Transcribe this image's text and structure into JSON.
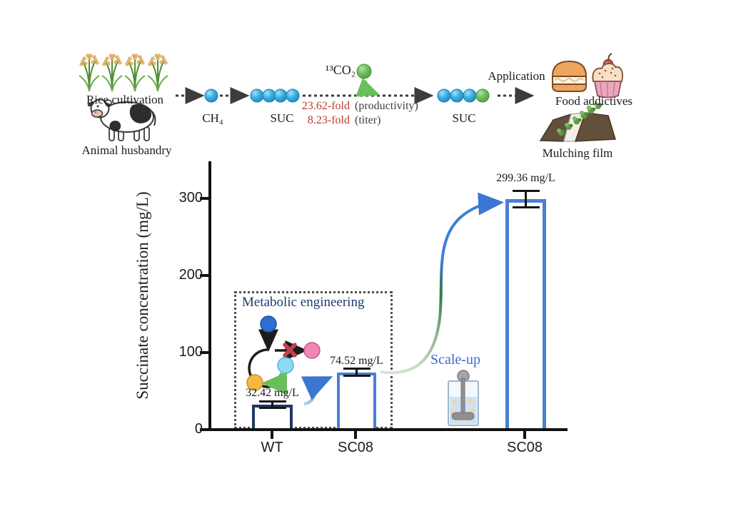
{
  "figure": {
    "background": "#ffffff"
  },
  "flow": {
    "rice_label": "Rice cultivation",
    "animal_label": "Animal husbandry",
    "methane_label": "CH₄",
    "suc_label_1": "SUC",
    "co2_label": "¹³CO₂",
    "productivity_fold": "23.62-fold",
    "productivity_note": "(productivity)",
    "titer_fold": "8.23-fold",
    "titer_note": "(titer)",
    "suc_label_2": "SUC",
    "application_label": "Application",
    "food_label": "Food addictives",
    "mulch_label": "Mulching film",
    "fold_color": "#c0392b",
    "sphere_blue": "#2aa3dd",
    "sphere_green": "#6cbf5c"
  },
  "chart": {
    "metabolic_box_label": "Metabolic engineering",
    "metabolic_label_color": "#1e3a6e",
    "scaleup_label": "Scale-up",
    "scaleup_label_color": "#3a6cc8"
  },
  "chart_data": {
    "type": "bar",
    "categories": [
      "WT",
      "SC08",
      "SC08"
    ],
    "values": [
      32.42,
      74.52,
      299.36
    ],
    "errors": [
      6,
      6,
      12
    ],
    "value_labels": [
      "32.42 mg/L",
      "74.52 mg/L",
      "299.36 mg/L"
    ],
    "ylabel": "Succinate concentration (mg/L)",
    "yticks": [
      "0",
      "100",
      "200",
      "300"
    ],
    "ylim": [
      0,
      350
    ],
    "bar_colors": [
      "#1f3864",
      "#4a7fd4",
      "#4a7fd4"
    ],
    "bar_fill": "#ffffff",
    "grid": false,
    "annotations": [
      "Metabolic engineering",
      "Scale-up"
    ]
  },
  "icons": [
    "rice-plants-icon",
    "cow-icon",
    "methane-sphere-icon",
    "suc-spheres-icon",
    "co2-sphere-icon",
    "burger-icon",
    "cupcake-icon",
    "mulching-film-icon",
    "metabolic-pathway-icon",
    "bioreactor-icon",
    "dashed-arrow-icon",
    "curved-arrow-icon"
  ]
}
